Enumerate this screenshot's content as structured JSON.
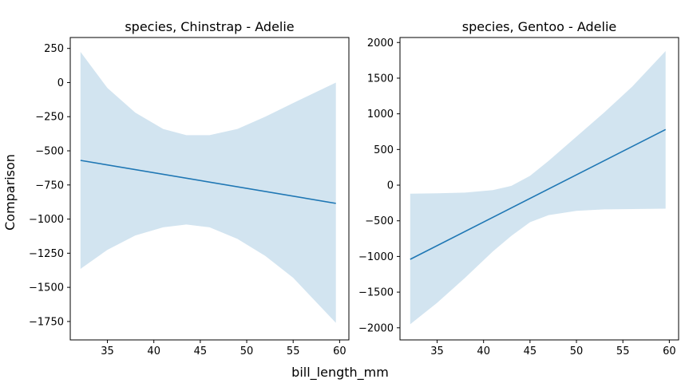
{
  "figure": {
    "xlabel": "bill_length_mm",
    "ylabel": "Comparison"
  },
  "chart_data": [
    {
      "type": "line",
      "title": "species, Chinstrap - Adelie",
      "xlim": [
        31,
        61
      ],
      "ylim": [
        -1885,
        330
      ],
      "xticks": [
        35,
        40,
        45,
        50,
        55,
        60
      ],
      "yticks": [
        250,
        0,
        -250,
        -500,
        -750,
        -1000,
        -1250,
        -1500,
        -1750
      ],
      "ytick_labels": [
        "250",
        "0",
        "−250",
        "−500",
        "−750",
        "−1000",
        "−1250",
        "−1500",
        "−1750"
      ],
      "series": [
        {
          "x": [
            32.1,
            59.6
          ],
          "y": [
            -570,
            -885
          ]
        }
      ],
      "band": {
        "x": [
          32.1,
          35,
          38,
          41,
          43.5,
          46,
          49,
          52,
          55,
          59.6
        ],
        "upper": [
          225,
          -40,
          -220,
          -340,
          -385,
          -385,
          -340,
          -250,
          -150,
          0
        ],
        "lower": [
          -1365,
          -1225,
          -1120,
          -1060,
          -1040,
          -1060,
          -1145,
          -1270,
          -1430,
          -1760
        ]
      },
      "colors": {
        "line": "#1f77b4",
        "band": "#1f77b4"
      }
    },
    {
      "type": "line",
      "title": "species, Gentoo - Adelie",
      "xlim": [
        31,
        61
      ],
      "ylim": [
        -2170,
        2070
      ],
      "xticks": [
        35,
        40,
        45,
        50,
        55,
        60
      ],
      "yticks": [
        2000,
        1500,
        1000,
        500,
        0,
        -500,
        -1000,
        -1500,
        -2000
      ],
      "ytick_labels": [
        "2000",
        "1500",
        "1000",
        "500",
        "0",
        "−500",
        "−1000",
        "−1500",
        "−2000"
      ],
      "series": [
        {
          "x": [
            32.1,
            59.6
          ],
          "y": [
            -1040,
            780
          ]
        }
      ],
      "band": {
        "x": [
          32.1,
          35,
          38,
          41,
          43,
          45,
          47,
          50,
          53,
          56,
          59.6
        ],
        "upper": [
          -120,
          -115,
          -105,
          -70,
          -10,
          130,
          340,
          680,
          1020,
          1380,
          1880
        ],
        "lower": [
          -1950,
          -1650,
          -1300,
          -930,
          -710,
          -520,
          -420,
          -360,
          -340,
          -335,
          -330
        ]
      },
      "colors": {
        "line": "#1f77b4",
        "band": "#1f77b4"
      }
    }
  ]
}
